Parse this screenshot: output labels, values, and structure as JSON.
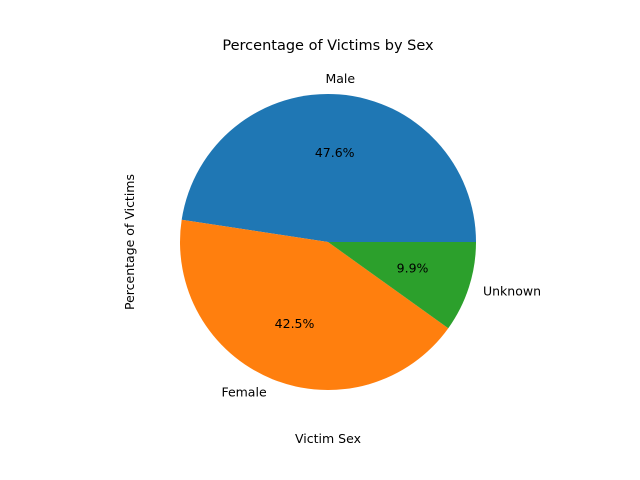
{
  "chart_data": {
    "type": "pie",
    "title": "Percentage of Victims by Sex",
    "xlabel": "Victim Sex",
    "ylabel": "Percentage of Victims",
    "slices": [
      {
        "label": "Male",
        "value": 47.6,
        "pct_label": "47.6%",
        "color": "#1f77b4"
      },
      {
        "label": "Female",
        "value": 42.5,
        "pct_label": "42.5%",
        "color": "#ff7f0e"
      },
      {
        "label": "Unknown",
        "value": 9.9,
        "pct_label": "9.9%",
        "color": "#2ca02c"
      }
    ],
    "start_angle_deg": 0,
    "direction": "counterclockwise"
  }
}
